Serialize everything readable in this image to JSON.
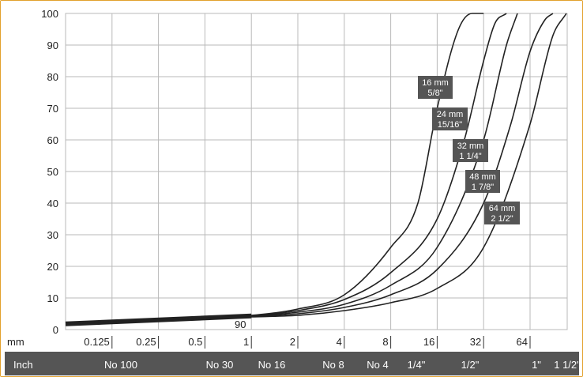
{
  "colors": {
    "frame": "#e2a12d",
    "grid": "#b9b9b9",
    "curve": "#222222",
    "label_box": "#555555",
    "inch_bar": "#555555"
  },
  "chart_data": {
    "type": "line",
    "xlabel": "mm",
    "x_scale": "log2",
    "ylim": [
      0,
      100
    ],
    "grid": true,
    "y_ticks": [
      0,
      10,
      20,
      30,
      40,
      50,
      60,
      70,
      80,
      90,
      100
    ],
    "x_ticks": [
      "0.125",
      "0.25",
      "0.5",
      "1",
      "2",
      "4",
      "8",
      "16",
      "32",
      "64"
    ],
    "inch_title": "Inch",
    "inch_labels": [
      "No 100",
      "No 30",
      "No 16",
      "No 8",
      "No 4",
      "1/4\"",
      "1/2\"",
      "1\"",
      "1 1/2\""
    ],
    "annotation": "90",
    "series": [
      {
        "name": "16 mm",
        "name2": "5/8\"",
        "x": [
          0.0625,
          0.125,
          0.25,
          0.5,
          1,
          2,
          4,
          8,
          12,
          16,
          22,
          27,
          32
        ],
        "y": [
          2,
          2.5,
          3,
          3.6,
          4.5,
          6.5,
          11,
          26,
          40,
          70,
          95,
          100,
          100
        ]
      },
      {
        "name": "24 mm",
        "name2": "15/16\"",
        "x": [
          0.0625,
          0.125,
          0.25,
          0.5,
          1,
          2,
          4,
          8,
          16,
          24,
          32,
          38,
          45
        ],
        "y": [
          2,
          2.5,
          3,
          3.6,
          4.3,
          6,
          9.5,
          18,
          35,
          60,
          85,
          97,
          100
        ]
      },
      {
        "name": "32 mm",
        "name2": "1 1/4\"",
        "x": [
          0.0625,
          0.125,
          0.25,
          0.5,
          1,
          2,
          4,
          8,
          16,
          32,
          45,
          53
        ],
        "y": [
          2,
          2.5,
          3,
          3.6,
          4.2,
          5.5,
          8,
          14,
          26,
          60,
          90,
          100
        ]
      },
      {
        "name": "48 mm",
        "name2": "1 7/8\"",
        "x": [
          0.0625,
          0.125,
          0.25,
          0.5,
          1,
          2,
          4,
          8,
          16,
          32,
          48,
          64,
          80,
          90
        ],
        "y": [
          2,
          2.5,
          3,
          3.6,
          4.1,
          5,
          7,
          11,
          19,
          40,
          65,
          88,
          98,
          100
        ]
      },
      {
        "name": "64 mm",
        "name2": "2 1/2\"",
        "x": [
          0.0625,
          0.125,
          0.25,
          0.5,
          1,
          2,
          4,
          8,
          16,
          32,
          64,
          90,
          110
        ],
        "y": [
          2,
          2.5,
          3,
          3.6,
          4,
          4.5,
          6,
          8.5,
          13,
          26,
          65,
          93,
          100
        ]
      }
    ]
  }
}
